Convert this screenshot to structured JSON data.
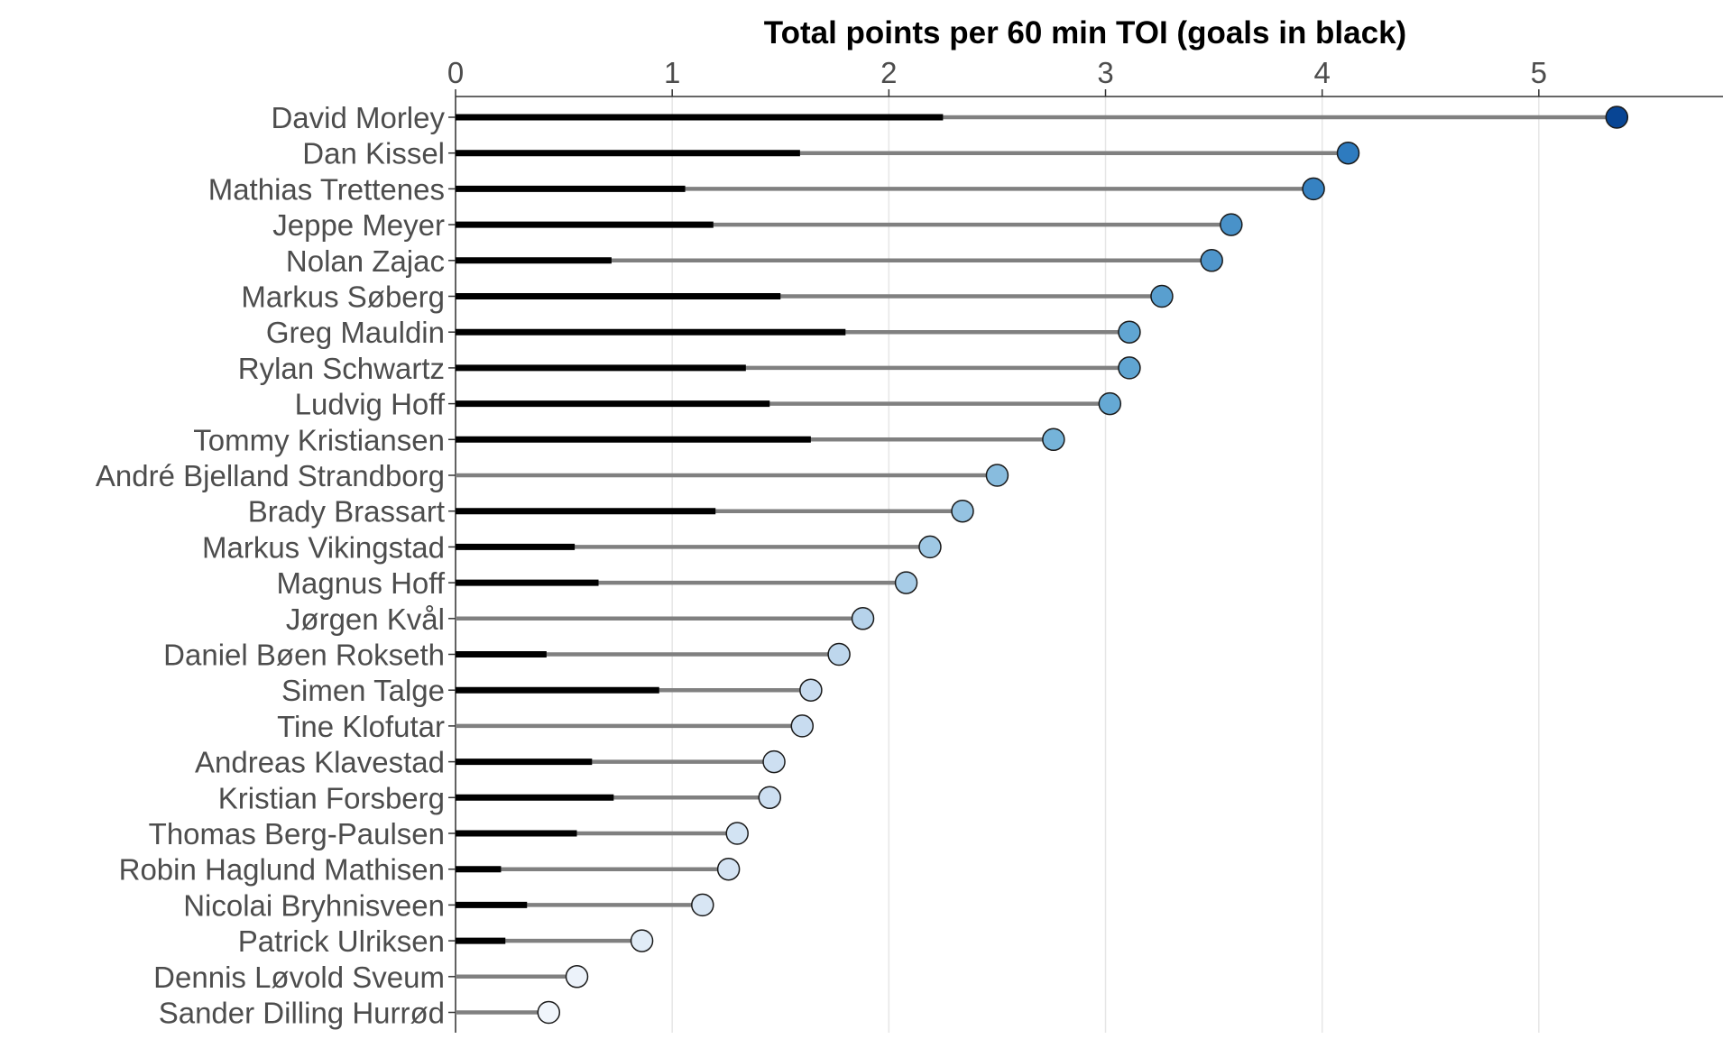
{
  "chart_data": {
    "type": "lollipop",
    "title": "Total points per 60 min TOI (goals in black)",
    "xlabel": "",
    "ylabel": "",
    "xlim": [
      0,
      5.85
    ],
    "x_ticks": [
      0,
      1,
      2,
      3,
      4,
      5
    ],
    "x_axis_position": "top",
    "grid": "vertical-major",
    "categories": [
      "David Morley",
      "Dan Kissel",
      "Mathias Trettenes",
      "Jeppe Meyer",
      "Nolan Zajac",
      "Markus Søberg",
      "Greg Mauldin",
      "Rylan Schwartz",
      "Ludvig Hoff",
      "Tommy Kristiansen",
      "André Bjelland Strandborg",
      "Brady Brassart",
      "Markus Vikingstad",
      "Magnus Hoff",
      "Jørgen Kvål",
      "Daniel Bøen Rokseth",
      "Simen Talge",
      "Tine Klofutar",
      "Andreas Klavestad",
      "Kristian Forsberg",
      "Thomas Berg-Paulsen",
      "Robin Haglund Mathisen",
      "Nicolai Bryhnisveen",
      "Patrick Ulriksen",
      "Dennis Løvold Sveum",
      "Sander Dilling Hurrød"
    ],
    "series": [
      {
        "name": "Total points",
        "color": "#808080",
        "values": [
          5.36,
          4.12,
          3.96,
          3.58,
          3.49,
          3.26,
          3.11,
          3.11,
          3.02,
          2.76,
          2.5,
          2.34,
          2.19,
          2.08,
          1.88,
          1.77,
          1.64,
          1.6,
          1.47,
          1.45,
          1.3,
          1.26,
          1.14,
          0.86,
          0.56,
          0.43
        ]
      },
      {
        "name": "Goals",
        "color": "#000000",
        "values": [
          2.25,
          1.59,
          1.06,
          1.19,
          0.72,
          1.5,
          1.8,
          1.34,
          1.45,
          1.64,
          0.0,
          1.2,
          0.55,
          0.66,
          0.0,
          0.42,
          0.94,
          0.0,
          0.63,
          0.73,
          0.56,
          0.21,
          0.33,
          0.23,
          0.0,
          0.0
        ]
      }
    ],
    "point_fill_scale": [
      "#f0f5fb",
      "#c6dbef",
      "#6baed6",
      "#2e7bbf",
      "#084594"
    ]
  }
}
